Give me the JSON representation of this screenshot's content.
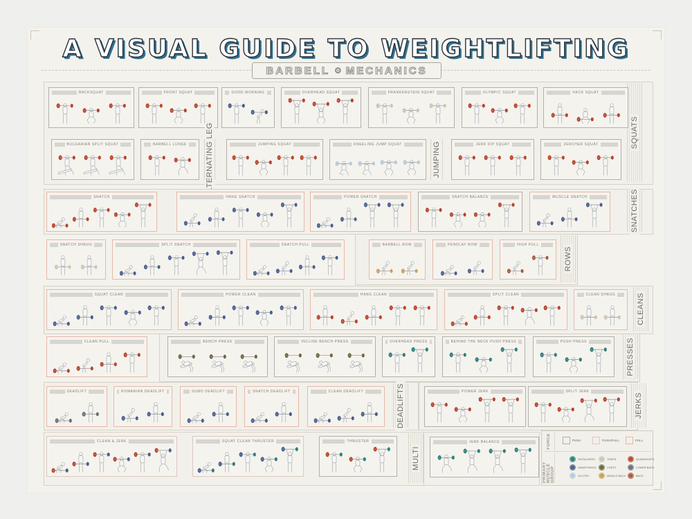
{
  "header": {
    "title": "A VISUAL GUIDE TO WEIGHTLIFTING",
    "subtitle_left": "BARBELL",
    "subtitle_right": "MECHANICS",
    "subtitle_icon": "gear-icon"
  },
  "colors": {
    "background": "#efefed",
    "paper": "#f4f2ec",
    "title_fill": "#ffffff",
    "title_shadow": "#2f6f8f",
    "card_border_push": "#b3b0aa",
    "card_border_pushpull": "#d9c9c0",
    "card_border_pull": "#e4b9a8",
    "plates": {
      "quadriceps": "#b8452e",
      "hamstrings": "#4a5f8f",
      "shoulders": "#2f7f7a",
      "glutes": "#b7c9d8",
      "traps": "#cfc4b2",
      "chest": "#6b6a3f",
      "middle_back": "#c9a15a",
      "lower_back": "#6c6f74",
      "back": "#a65a3e"
    }
  },
  "groups": [
    {
      "name": "SQUATS",
      "label": "SQUATS"
    },
    {
      "name": "ALTERNATING LEG",
      "label": "ALTERNATING LEG"
    },
    {
      "name": "JUMPING",
      "label": "JUMPING"
    },
    {
      "name": "SNATCHES",
      "label": "SNATCHES"
    },
    {
      "name": "ROWS",
      "label": "ROWS"
    },
    {
      "name": "CLEANS",
      "label": "CLEANS"
    },
    {
      "name": "PRESSES",
      "label": "PRESSES"
    },
    {
      "name": "DEADLIFTS",
      "label": "DEADLIFTS"
    },
    {
      "name": "JERKS",
      "label": "JERKS"
    },
    {
      "name": "MULTI",
      "label": "MULTI"
    }
  ],
  "exercises": [
    {
      "name": "BACKSQUAT",
      "force": "push",
      "plate": "quadriceps",
      "poses": [
        "stand-rack",
        "squat-rack",
        "stand-rack"
      ]
    },
    {
      "name": "FRONT SQUAT",
      "force": "push",
      "plate": "quadriceps",
      "poses": [
        "stand-rack",
        "squat-rack",
        "stand-rack"
      ]
    },
    {
      "name": "GOOD MORNING",
      "force": "push",
      "plate": "hamstrings",
      "poses": [
        "stand-rack",
        "hinge-rack"
      ]
    },
    {
      "name": "OVERHEAD SQUAT",
      "force": "push",
      "plate": "quadriceps",
      "poses": [
        "overhead",
        "squat-overhead",
        "overhead"
      ]
    },
    {
      "name": "FRANKENSTEIN SQUAT",
      "force": "push",
      "plate": "traps",
      "poses": [
        "stand-rack",
        "squat-rack",
        "stand-rack"
      ]
    },
    {
      "name": "OLYMPIC SQUAT",
      "force": "push",
      "plate": "quadriceps",
      "poses": [
        "stand-rack",
        "squat-rack",
        "stand-rack"
      ]
    },
    {
      "name": "HACK SQUAT",
      "force": "push",
      "plate": "quadriceps",
      "poses": [
        "stand-low",
        "squat-low",
        "stand-low"
      ]
    },
    {
      "name": "BULGARIAN SPLIT SQUAT",
      "force": "push",
      "plate": "quadriceps",
      "poses": [
        "bench-split",
        "bench-split",
        "bench-split"
      ]
    },
    {
      "name": "BARBELL LUNGE",
      "force": "push",
      "plate": "quadriceps",
      "poses": [
        "stand-rack",
        "lunge-rack"
      ]
    },
    {
      "name": "JUMPING SQUAT",
      "force": "push",
      "plate": "quadriceps",
      "poses": [
        "stand-rack",
        "squat-rack",
        "stand-rack",
        "stand-rack"
      ]
    },
    {
      "name": "KNEELING JUMP SQUAT",
      "force": "push",
      "plate": "glutes",
      "poses": [
        "kneel-rack",
        "kneel-rack",
        "squat-rack",
        "squat-rack"
      ]
    },
    {
      "name": "JERK DIP SQUAT",
      "force": "push",
      "plate": "quadriceps",
      "poses": [
        "stand-rack",
        "stand-rack",
        "stand-rack"
      ]
    },
    {
      "name": "ZERCHER SQUAT",
      "force": "push",
      "plate": "quadriceps",
      "poses": [
        "stand-rack",
        "squat-rack",
        "stand-rack"
      ]
    },
    {
      "name": "SNATCH",
      "force": "pull",
      "plate": "quadriceps",
      "poses": [
        "floor",
        "stand-low",
        "stand-rack",
        "squat-rack",
        "overhead"
      ]
    },
    {
      "name": "HANG SNATCH",
      "force": "pull",
      "plate": "hamstrings",
      "poses": [
        "hinge-low",
        "stand-low",
        "stand-rack",
        "squat-rack",
        "overhead"
      ]
    },
    {
      "name": "POWER SNATCH",
      "force": "pull",
      "plate": "hamstrings",
      "poses": [
        "floor",
        "stand-low",
        "overhead",
        "overhead"
      ]
    },
    {
      "name": "SNATCH BALANCE",
      "force": "push",
      "plate": "quadriceps",
      "poses": [
        "stand-rack",
        "squat-rack",
        "squat-rack",
        "overhead"
      ]
    },
    {
      "name": "MUSCLE SNATCH",
      "force": "pull",
      "plate": "hamstrings",
      "poses": [
        "hinge-low",
        "stand-low",
        "overhead"
      ]
    },
    {
      "name": "SNATCH SHRUG",
      "force": "pull",
      "plate": "traps",
      "poses": [
        "stand-low",
        "stand-low"
      ]
    },
    {
      "name": "SPLIT SNATCH",
      "force": "pull",
      "plate": "hamstrings",
      "poses": [
        "floor",
        "stand-low",
        "stand-rack",
        "lunge-overhead",
        "overhead"
      ]
    },
    {
      "name": "SNATCH PULL",
      "force": "pull",
      "plate": "hamstrings",
      "poses": [
        "floor",
        "hinge-low",
        "stand-low",
        "stand-rack"
      ]
    },
    {
      "name": "BARBELL ROW",
      "force": "pull",
      "plate": "middle_back",
      "poses": [
        "hinge-low",
        "hinge-low"
      ]
    },
    {
      "name": "PENDLAY ROW",
      "force": "pull",
      "plate": "hamstrings",
      "poses": [
        "floor",
        "hinge-low"
      ]
    },
    {
      "name": "HIGH PULL",
      "force": "pull",
      "plate": "back",
      "poses": [
        "hinge-low",
        "stand-rack"
      ]
    },
    {
      "name": "SQUAT CLEAN",
      "force": "pull",
      "plate": "hamstrings",
      "poses": [
        "floor",
        "stand-low",
        "stand-rack",
        "squat-rack",
        "stand-rack"
      ]
    },
    {
      "name": "POWER CLEAN",
      "force": "pull",
      "plate": "hamstrings",
      "poses": [
        "floor",
        "stand-low",
        "stand-rack",
        "squat-rack",
        "stand-rack"
      ]
    },
    {
      "name": "HANG CLEAN",
      "force": "pull",
      "plate": "quadriceps",
      "poses": [
        "stand-low",
        "hinge-low",
        "stand-low",
        "stand-rack",
        "stand-rack"
      ]
    },
    {
      "name": "SPLIT CLEAN",
      "force": "pull",
      "plate": "quadriceps",
      "poses": [
        "floor",
        "stand-low",
        "stand-rack",
        "lunge-rack",
        "stand-rack"
      ]
    },
    {
      "name": "CLEAN SHRUG",
      "force": "pull",
      "plate": "traps",
      "poses": [
        "stand-low",
        "stand-low"
      ]
    },
    {
      "name": "CLEAN PULL",
      "force": "pull",
      "plate": "quadriceps",
      "poses": [
        "floor",
        "hinge-low",
        "stand-low",
        "stand-rack"
      ]
    },
    {
      "name": "BENCH PRESS",
      "force": "push",
      "plate": "chest",
      "poses": [
        "bench",
        "bench",
        "bench"
      ]
    },
    {
      "name": "INCLINE BENCH PRESS",
      "force": "push",
      "plate": "chest",
      "poses": [
        "incline",
        "incline",
        "incline"
      ]
    },
    {
      "name": "OVERHEAD PRESS",
      "force": "push",
      "plate": "shoulders",
      "poses": [
        "stand-rack",
        "overhead"
      ]
    },
    {
      "name": "BEHIND THE NECK PUSH PRESS",
      "force": "push",
      "plate": "shoulders",
      "poses": [
        "stand-rack",
        "squat-rack",
        "overhead"
      ]
    },
    {
      "name": "PUSH PRESS",
      "force": "push",
      "plate": "shoulders",
      "poses": [
        "stand-rack",
        "squat-rack",
        "overhead"
      ]
    },
    {
      "name": "DEADLIFT",
      "force": "pull",
      "plate": "lower_back",
      "poses": [
        "floor",
        "stand-low"
      ]
    },
    {
      "name": "ROMANIAN DEADLIFT",
      "force": "pull",
      "plate": "hamstrings",
      "poses": [
        "hinge-low",
        "stand-low"
      ]
    },
    {
      "name": "SUMO DEADLIFT",
      "force": "pull",
      "plate": "hamstrings",
      "poses": [
        "floor",
        "stand-low"
      ]
    },
    {
      "name": "SNATCH DEADLIFT",
      "force": "pull",
      "plate": "hamstrings",
      "poses": [
        "floor",
        "stand-low"
      ]
    },
    {
      "name": "CLEAN DEADLIFT",
      "force": "pull",
      "plate": "hamstrings",
      "poses": [
        "floor",
        "hinge-low",
        "stand-low"
      ]
    },
    {
      "name": "POWER JERK",
      "force": "push",
      "plate": "quadriceps",
      "poses": [
        "stand-rack",
        "squat-rack",
        "overhead",
        "overhead"
      ]
    },
    {
      "name": "SPLIT JERK",
      "force": "push",
      "plate": "quadriceps",
      "poses": [
        "stand-rack",
        "squat-rack",
        "lunge-overhead",
        "overhead"
      ]
    },
    {
      "name": "CLEAN & JERK",
      "force": "pushpull",
      "plate": "hamstrings",
      "plate2": "quadriceps",
      "poses": [
        "floor",
        "stand-low",
        "stand-rack",
        "squat-rack",
        "stand-rack",
        "lunge-overhead"
      ]
    },
    {
      "name": "SQUAT CLEAN THRUSTER",
      "force": "pushpull",
      "plate": "shoulders",
      "plate2": "hamstrings",
      "poses": [
        "floor",
        "stand-low",
        "stand-rack",
        "squat-rack",
        "overhead"
      ]
    },
    {
      "name": "THRUSTER",
      "force": "push",
      "plate": "shoulders",
      "plate2": "quadriceps",
      "poses": [
        "stand-rack",
        "squat-rack",
        "overhead"
      ]
    },
    {
      "name": "JERK BALANCE",
      "force": "push",
      "plate": "shoulders",
      "poses": [
        "lunge-rack",
        "lunge-overhead",
        "lunge-overhead",
        "overhead"
      ]
    }
  ],
  "legend": {
    "force_title": "FORCE",
    "force_items": [
      {
        "key": "push",
        "label": "PUSH"
      },
      {
        "key": "pushpull",
        "label": "PUSH/PULL"
      },
      {
        "key": "pull",
        "label": "PULL"
      }
    ],
    "muscle_title": "PRIMARY MUSCLE GROUP",
    "muscle_items": [
      {
        "key": "shoulders",
        "label": "SHOULDERS"
      },
      {
        "key": "hamstrings",
        "label": "HAMSTRINGS"
      },
      {
        "key": "glutes",
        "label": "GLUTES"
      },
      {
        "key": "traps",
        "label": "TRAPS"
      },
      {
        "key": "chest",
        "label": "CHEST"
      },
      {
        "key": "middle_back",
        "label": "MIDDLE BACK"
      },
      {
        "key": "quadriceps",
        "label": "QUADRICEPS"
      },
      {
        "key": "lower_back",
        "label": "LOWER BACK"
      },
      {
        "key": "back",
        "label": "BACK"
      }
    ]
  }
}
